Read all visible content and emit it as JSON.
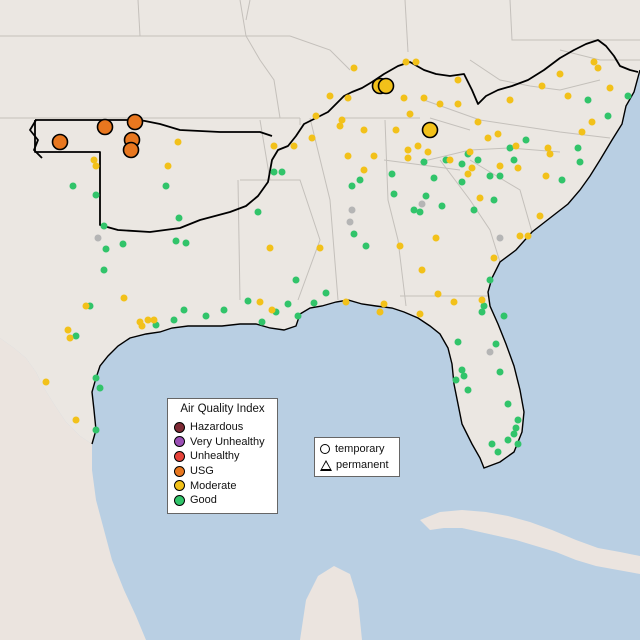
{
  "legend": {
    "title": "Air Quality Index",
    "categories": [
      {
        "label": "Hazardous",
        "color": "#7e2a35"
      },
      {
        "label": "Very Unhealthy",
        "color": "#9b4fb5"
      },
      {
        "label": "Unhealthy",
        "color": "#e6433a"
      },
      {
        "label": "USG",
        "color": "#e8771f"
      },
      {
        "label": "Moderate",
        "color": "#f2c11a"
      },
      {
        "label": "Good",
        "color": "#31c46a"
      }
    ],
    "monitor_types": [
      {
        "label": "temporary",
        "shape": "circle-icon"
      },
      {
        "label": "permanent",
        "shape": "triangle-icon"
      }
    ]
  },
  "colors": {
    "water": "#b9cfe3",
    "land": "#ebe7e2",
    "region_outline": "#000000",
    "no_data": "#b5b5b5"
  }
}
